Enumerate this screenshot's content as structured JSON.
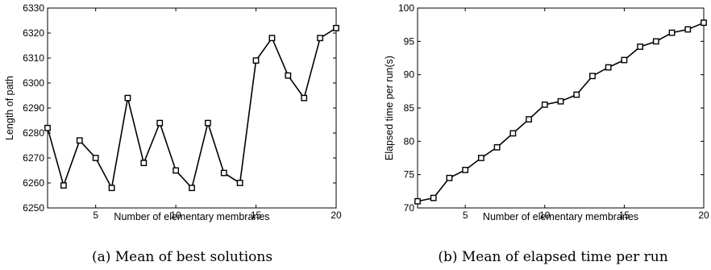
{
  "chart_data": [
    {
      "type": "line",
      "caption": "(a) Mean of best solutions",
      "xlabel": "Number of elementary membranes",
      "ylabel": "Length of path",
      "xlim": [
        2,
        20
      ],
      "ylim": [
        6250,
        6330
      ],
      "xticks": [
        5,
        10,
        15,
        20
      ],
      "yticks": [
        6250,
        6260,
        6270,
        6280,
        6290,
        6300,
        6310,
        6320,
        6330
      ],
      "marker": "square",
      "grid": false,
      "series": [
        {
          "x": [
            2,
            3,
            4,
            5,
            6,
            7,
            8,
            9,
            10,
            11,
            12,
            13,
            14,
            15,
            16,
            17,
            18,
            19,
            20
          ],
          "values": [
            6282,
            6259,
            6277,
            6270,
            6258,
            6294,
            6268,
            6284,
            6265,
            6258,
            6284,
            6264,
            6260,
            6309,
            6318,
            6303,
            6294,
            6318,
            6322
          ]
        }
      ]
    },
    {
      "type": "line",
      "caption": "(b) Mean of elapsed time per run",
      "xlabel": "Number of elementary membranes",
      "ylabel": "Elapsed time per run(s)",
      "xlim": [
        2,
        20
      ],
      "ylim": [
        70,
        100
      ],
      "xticks": [
        5,
        10,
        15,
        20
      ],
      "yticks": [
        70,
        75,
        80,
        85,
        90,
        95,
        100
      ],
      "marker": "square",
      "grid": false,
      "series": [
        {
          "x": [
            2,
            3,
            4,
            5,
            6,
            7,
            8,
            9,
            10,
            11,
            12,
            13,
            14,
            15,
            16,
            17,
            18,
            19,
            20
          ],
          "values": [
            71.0,
            71.5,
            74.5,
            75.7,
            77.5,
            79.1,
            81.2,
            83.3,
            85.5,
            86.0,
            87.0,
            89.8,
            91.1,
            92.2,
            94.2,
            95.0,
            96.3,
            96.8,
            97.8
          ]
        }
      ]
    }
  ]
}
